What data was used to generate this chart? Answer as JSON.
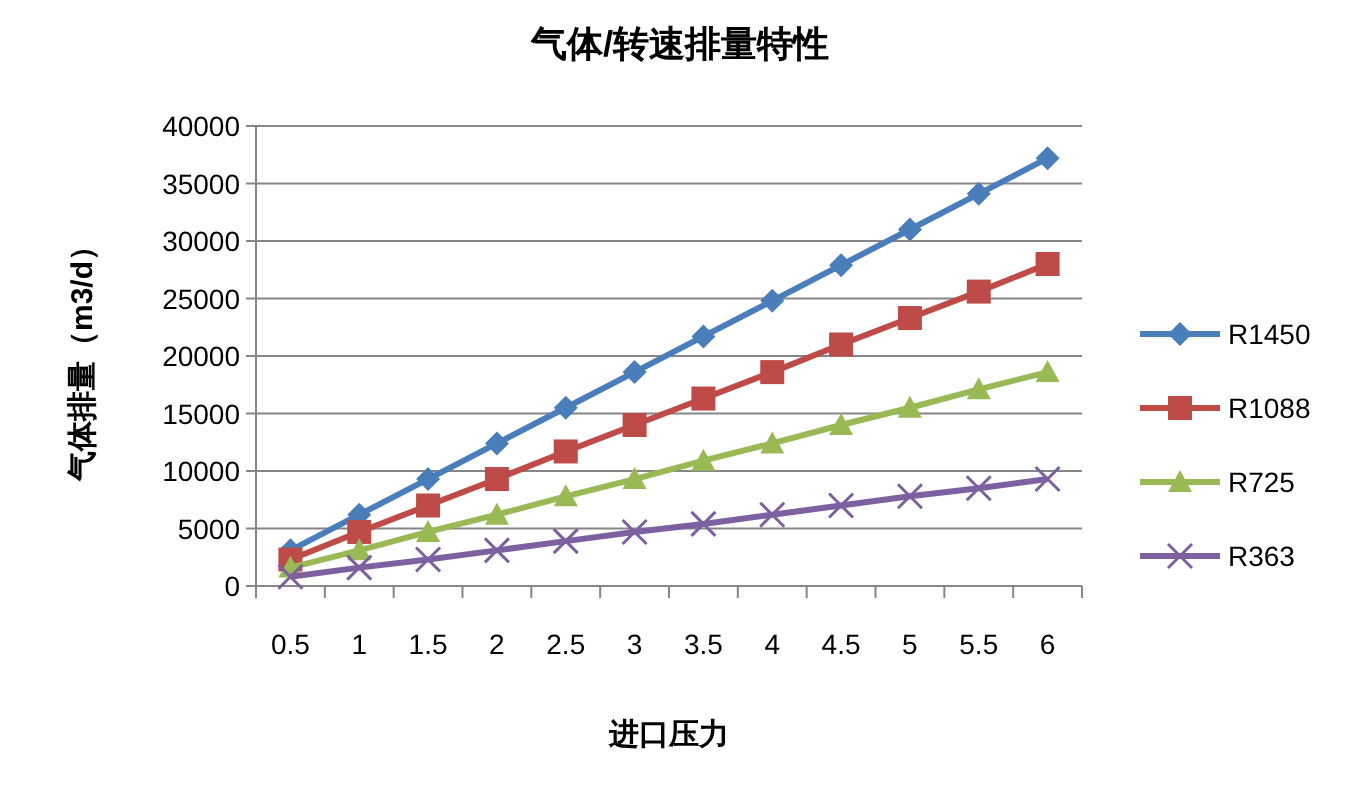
{
  "chart_data": {
    "type": "line",
    "title": "气体/转速排量特性",
    "xlabel": "进口压力",
    "ylabel": "气体排量（m3/d）",
    "categories": [
      "0.5",
      "1",
      "1.5",
      "2",
      "2.5",
      "3",
      "3.5",
      "4",
      "4.5",
      "5",
      "5.5",
      "6"
    ],
    "series": [
      {
        "name": "R1450",
        "color": "#4a7ebb",
        "marker": "diamond",
        "values": [
          3100,
          6200,
          9300,
          12400,
          15500,
          18600,
          21700,
          24800,
          27900,
          31000,
          34100,
          37200
        ]
      },
      {
        "name": "R1088",
        "color": "#be4b48",
        "marker": "square",
        "values": [
          2300,
          4700,
          7000,
          9300,
          11700,
          14000,
          16300,
          18600,
          21000,
          23300,
          25600,
          28000
        ]
      },
      {
        "name": "R725",
        "color": "#98b954",
        "marker": "triangle",
        "values": [
          1600,
          3100,
          4700,
          6200,
          7800,
          9300,
          10900,
          12400,
          14000,
          15500,
          17100,
          18600
        ]
      },
      {
        "name": "R363",
        "color": "#7d60a0",
        "marker": "cross",
        "values": [
          800,
          1600,
          2300,
          3100,
          3900,
          4700,
          5400,
          6200,
          7000,
          7800,
          8500,
          9300
        ]
      }
    ],
    "ylim": [
      0,
      40000
    ],
    "yticks": [
      0,
      5000,
      10000,
      15000,
      20000,
      25000,
      30000,
      35000,
      40000
    ],
    "grid": "y",
    "legend": "right"
  }
}
